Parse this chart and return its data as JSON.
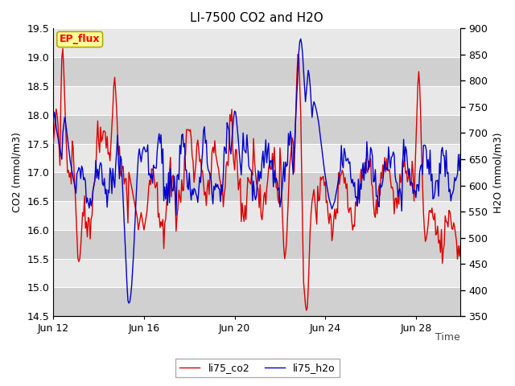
{
  "title": "LI-7500 CO2 and H2O",
  "xlabel": "Time",
  "ylabel_left": "CO2 (mmol/m3)",
  "ylabel_right": "H2O (mmol/m3)",
  "co2_ylim": [
    14.5,
    19.5
  ],
  "h2o_ylim": [
    350,
    900
  ],
  "co2_yticks": [
    14.5,
    15.0,
    15.5,
    16.0,
    16.5,
    17.0,
    17.5,
    18.0,
    18.5,
    19.0,
    19.5
  ],
  "h2o_yticks": [
    350,
    400,
    450,
    500,
    550,
    600,
    650,
    700,
    750,
    800,
    850,
    900
  ],
  "xtick_labels": [
    "Jun 12",
    "Jun 16",
    "Jun 20",
    "Jun 24",
    "Jun 28"
  ],
  "xtick_positions": [
    0,
    96,
    192,
    288,
    384
  ],
  "co2_color": "#DD0000",
  "h2o_color": "#0000CC",
  "plot_bg_color": "#E8E8E8",
  "stripe_color": "#D0D0D0",
  "grid_color": "#FFFFFF",
  "ep_flux_label": "EP_flux",
  "ep_flux_bg": "#FFFF99",
  "ep_flux_border": "#AAAA00",
  "legend_co2": "li75_co2",
  "legend_h2o": "li75_h2o",
  "title_fontsize": 11,
  "axis_fontsize": 9,
  "tick_fontsize": 9,
  "legend_fontsize": 9,
  "n_points": 432
}
